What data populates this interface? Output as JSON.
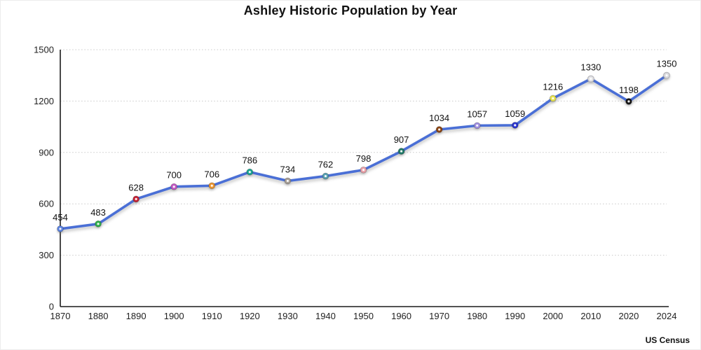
{
  "page": {
    "title": "Ashley Historic Population by Year",
    "source": "US Census"
  },
  "chart_data": {
    "type": "line",
    "title": "Ashley Historic Population by Year",
    "source": "US Census",
    "categories": [
      "1870",
      "1880",
      "1890",
      "1900",
      "1910",
      "1920",
      "1930",
      "1940",
      "1950",
      "1960",
      "1970",
      "1980",
      "1990",
      "2000",
      "2010",
      "2020",
      "2024"
    ],
    "values": [
      454,
      483,
      628,
      700,
      706,
      786,
      734,
      762,
      798,
      907,
      1034,
      1057,
      1059,
      1216,
      1330,
      1198,
      1350
    ],
    "xlabel": "",
    "ylabel": "",
    "ylim": [
      0,
      1500
    ],
    "yticks": [
      0,
      300,
      600,
      900,
      1200,
      1500
    ],
    "grid": "horizontal-dotted",
    "legend": "none",
    "line_color": "#4a6fd6",
    "axis_color": "#1a1a1a",
    "grid_color": "#c9c9c9",
    "label_color": "#111111",
    "tick_label_color": "#222222",
    "marker_colors": [
      "#5b82e0",
      "#2fae49",
      "#c41f33",
      "#c257c2",
      "#e9932f",
      "#19a390",
      "#a69e96",
      "#58a0b0",
      "#e9a0a8",
      "#1f7a68",
      "#8b4513",
      "#a08fe0",
      "#2b35cf",
      "#e6e24e",
      "#e3e3e6",
      "#151515",
      "#d9d9dc"
    ]
  }
}
